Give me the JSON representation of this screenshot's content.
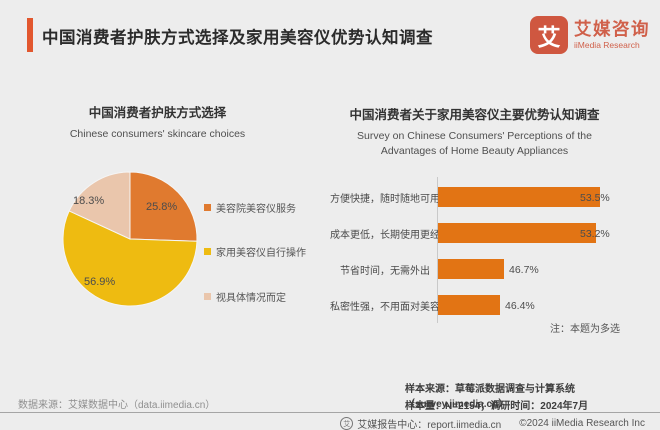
{
  "header": {
    "title": "中国消费者护肤方式选择及家用美容仪优势认知调查",
    "logo": {
      "icon_char": "艾",
      "name_cn": "艾媒咨询",
      "name_en": "iiMedia Research"
    }
  },
  "colors": {
    "accent": "#e2572e",
    "logo": "#cf5740",
    "logo_text": "#d0604a",
    "bar": "#e27414",
    "pie": [
      "#e07a2f",
      "#eebb11",
      "#eac6ac"
    ],
    "background": "#ededed"
  },
  "chart_data": [
    {
      "type": "pie",
      "title": "中国消费者护肤方式选择",
      "subtitle": "Chinese consumers' skincare choices",
      "labels": [
        "美容院美容仪服务",
        "家用美容仪自行操作",
        "视具体情况而定"
      ],
      "values": [
        25.8,
        56.9,
        18.3
      ],
      "colors": [
        "#e07a2f",
        "#eebb11",
        "#eac6ac"
      ],
      "start_angle": "top",
      "direction": "clockwise",
      "legend_position": "right"
    },
    {
      "type": "bar",
      "orientation": "horizontal",
      "title": "中国消费者关于家用美容仪主要优势认知调查",
      "subtitle": "Survey on Chinese Consumers' Perceptions of the Advantages of Home Beauty Appliances",
      "categories": [
        "方便快捷，随时随地可用",
        "成本更低，长期使用更经济",
        "节省时间，无需外出",
        "私密性强，不用面对美容师等"
      ],
      "values": [
        53.5,
        53.2,
        46.7,
        46.4
      ],
      "xlim": [
        42,
        54.5
      ],
      "grid": false,
      "note": "注：本题为多选",
      "bar_color": "#e27414"
    }
  ],
  "footer": {
    "data_source": "数据来源：艾媒数据中心（data.iimedia.cn）",
    "sample_source": "样本来源：草莓派数据调查与计算系统（survey.iimedia.cn）",
    "sample_info": "样本量：N=2154；调研时间：2024年7月",
    "report_center": "艾媒报告中心：report.iimedia.cn",
    "copyright": "©2024 iiMedia Research Inc"
  }
}
